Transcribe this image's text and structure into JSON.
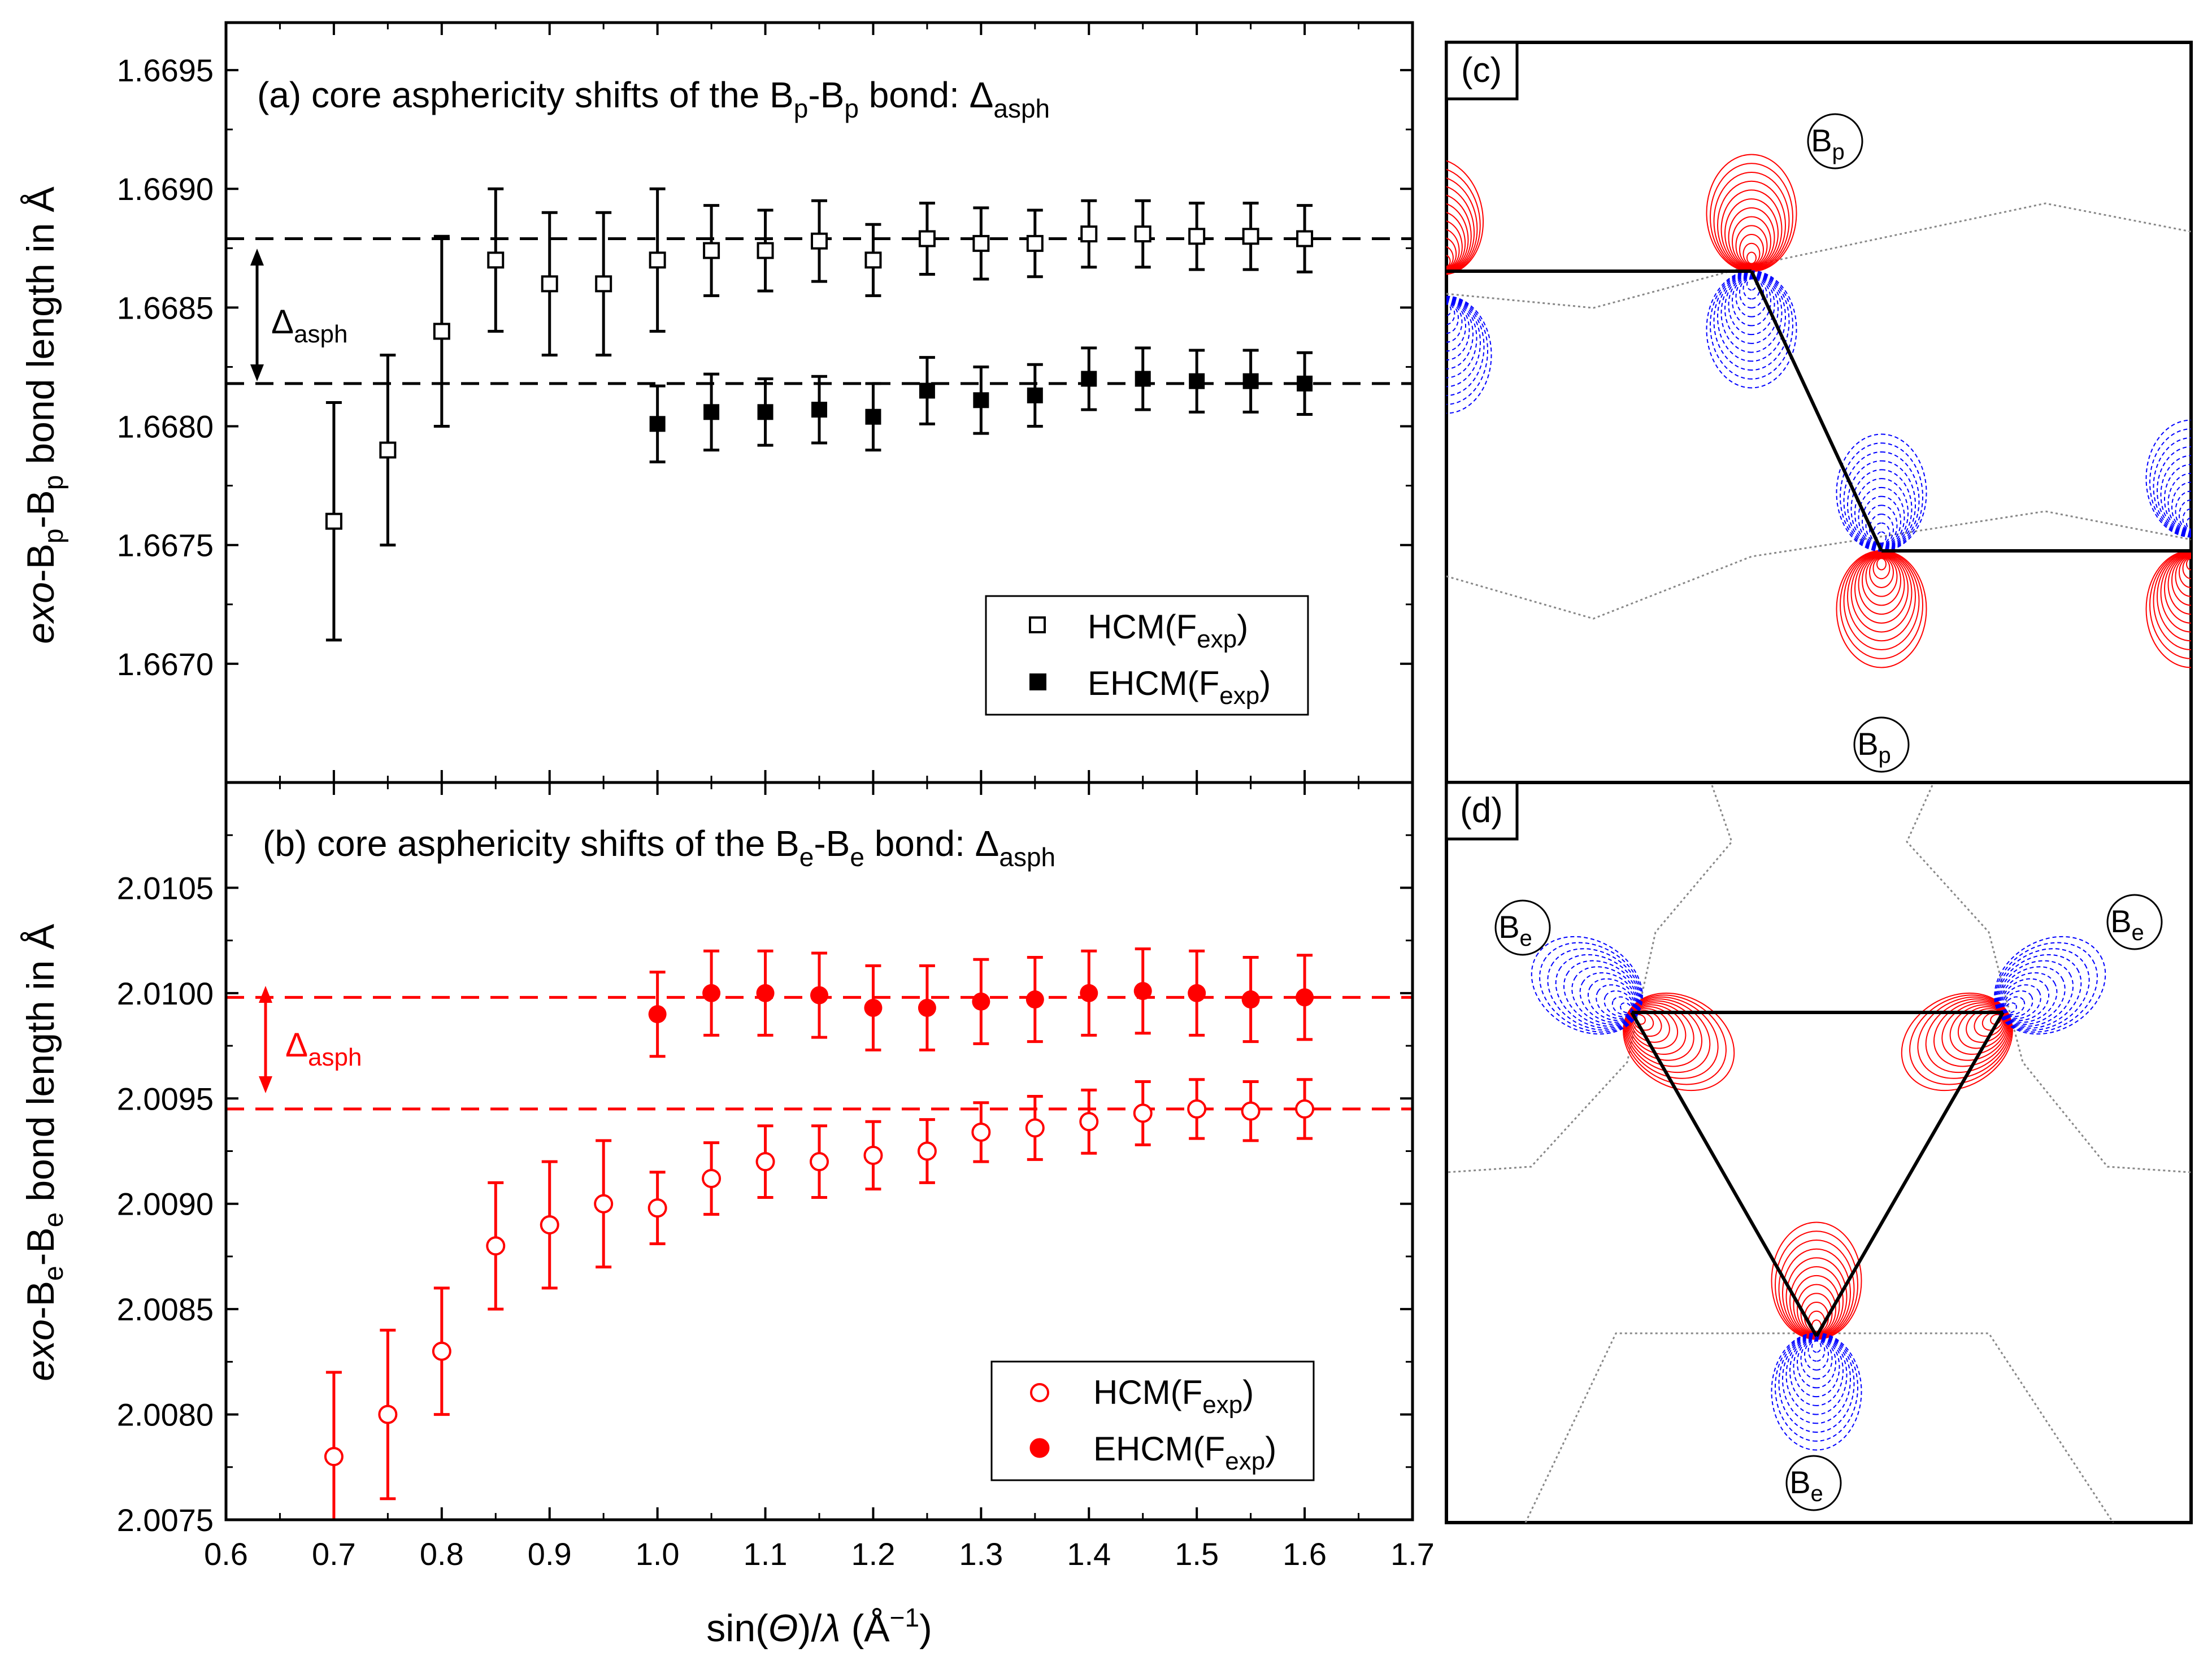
{
  "colors": {
    "black": "#000000",
    "red": "#ff0000",
    "blue": "#0000ff",
    "grey": "#888888"
  },
  "chart_data": [
    {
      "panel": "a",
      "type": "scatter",
      "title": "(a) core asphericity shifts of the B",
      "title_sub": "p",
      "title_mid": "-B",
      "title_sub2": "p",
      "title_end": " bond: Δ",
      "title_sub3": "asph",
      "ylabel_parts": {
        "a": "exo",
        "b": "-B",
        "c": "p",
        "d": "-B",
        "e": "p",
        "f": " bond length in Å"
      },
      "xlim": [
        0.6,
        1.7
      ],
      "ylim": [
        1.6665,
        1.6697
      ],
      "yticks": [
        "1.6670",
        "1.6675",
        "1.6680",
        "1.6685",
        "1.6690",
        "1.6695"
      ],
      "ytick_values": [
        1.667,
        1.6675,
        1.668,
        1.6685,
        1.669,
        1.6695
      ],
      "reference_lines": [
        1.66879,
        1.66818
      ],
      "delta_label": "Δ",
      "delta_sub": "asph",
      "series": [
        {
          "name": "HCM(F",
          "name_italic": "F",
          "name_sub": "exp",
          "name_end": ")",
          "marker": "open-square",
          "x": [
            0.7,
            0.75,
            0.8,
            0.85,
            0.9,
            0.95,
            1.0,
            1.05,
            1.1,
            1.15,
            1.2,
            1.25,
            1.3,
            1.35,
            1.4,
            1.45,
            1.5,
            1.55,
            1.6
          ],
          "y": [
            1.6676,
            1.6679,
            1.6684,
            1.6687,
            1.6686,
            1.6686,
            1.6687,
            1.66874,
            1.66874,
            1.66878,
            1.6687,
            1.66879,
            1.66877,
            1.66877,
            1.66881,
            1.66881,
            1.6688,
            1.6688,
            1.66879
          ],
          "err": [
            0.0005,
            0.0004,
            0.0004,
            0.0003,
            0.0003,
            0.0003,
            0.0003,
            0.00019,
            0.00017,
            0.00017,
            0.00015,
            0.00015,
            0.00015,
            0.00014,
            0.00014,
            0.00014,
            0.00014,
            0.00014,
            0.00014
          ]
        },
        {
          "name": "EHCM(F",
          "name_italic": "F",
          "name_sub": "exp",
          "name_end": ")",
          "marker": "filled-square",
          "x": [
            1.0,
            1.05,
            1.1,
            1.15,
            1.2,
            1.25,
            1.3,
            1.35,
            1.4,
            1.45,
            1.5,
            1.55,
            1.6
          ],
          "y": [
            1.66801,
            1.66806,
            1.66806,
            1.66807,
            1.66804,
            1.66815,
            1.66811,
            1.66813,
            1.6682,
            1.6682,
            1.66819,
            1.66819,
            1.66818
          ],
          "err": [
            0.00016,
            0.00016,
            0.00014,
            0.00014,
            0.00014,
            0.00014,
            0.00014,
            0.00013,
            0.00013,
            0.00013,
            0.00013,
            0.00013,
            0.00013
          ]
        }
      ]
    },
    {
      "panel": "b",
      "type": "scatter",
      "title": "(b) core asphericity shifts of the B",
      "title_sub": "e",
      "title_mid": "-B",
      "title_sub2": "e",
      "title_end": " bond: Δ",
      "title_sub3": "asph",
      "ylabel_parts": {
        "a": "exo",
        "b": "-B",
        "c": "e",
        "d": "-B",
        "e": "e",
        "f": " bond length in Å"
      },
      "xlabel": "sin(Θ)/λ (Å⁻¹)",
      "xlabel_parts": {
        "a": "sin(",
        "b": "Θ",
        "c": ")/",
        "d": "λ",
        "e": " (Å",
        "f": "−1",
        "g": ")"
      },
      "xlim": [
        0.6,
        1.7
      ],
      "xticks": [
        "0.6",
        "0.7",
        "0.8",
        "0.9",
        "1.0",
        "1.1",
        "1.2",
        "1.3",
        "1.4",
        "1.5",
        "1.6",
        "1.7"
      ],
      "xtick_values": [
        0.6,
        0.7,
        0.8,
        0.9,
        1.0,
        1.1,
        1.2,
        1.3,
        1.4,
        1.5,
        1.6,
        1.7
      ],
      "ylim": [
        2.0075,
        2.011
      ],
      "yticks": [
        "2.0075",
        "2.0080",
        "2.0085",
        "2.0090",
        "2.0095",
        "2.0100",
        "2.0105"
      ],
      "ytick_values": [
        2.0075,
        2.008,
        2.0085,
        2.009,
        2.0095,
        2.01,
        2.0105
      ],
      "reference_lines": [
        2.00998,
        2.00945
      ],
      "delta_label": "Δ",
      "delta_sub": "asph",
      "series": [
        {
          "name": "HCM(F",
          "name_italic": "F",
          "name_sub": "exp",
          "name_end": ")",
          "marker": "open-circle",
          "x": [
            0.7,
            0.75,
            0.8,
            0.85,
            0.9,
            0.95,
            1.0,
            1.05,
            1.1,
            1.15,
            1.2,
            1.25,
            1.3,
            1.35,
            1.4,
            1.45,
            1.5,
            1.55,
            1.6
          ],
          "y": [
            2.0078,
            2.008,
            2.0083,
            2.0088,
            2.0089,
            2.009,
            2.00898,
            2.00912,
            2.0092,
            2.0092,
            2.00923,
            2.00925,
            2.00934,
            2.00936,
            2.00939,
            2.00943,
            2.00945,
            2.00944,
            2.00945
          ],
          "err": [
            0.0004,
            0.0004,
            0.0003,
            0.0003,
            0.0003,
            0.0003,
            0.00017,
            0.00017,
            0.00017,
            0.00017,
            0.00016,
            0.00015,
            0.00014,
            0.00015,
            0.00015,
            0.00015,
            0.00014,
            0.00014,
            0.00014
          ]
        },
        {
          "name": "EHCM(F",
          "name_italic": "F",
          "name_sub": "exp",
          "name_end": ")",
          "marker": "filled-circle",
          "x": [
            1.0,
            1.05,
            1.1,
            1.15,
            1.2,
            1.25,
            1.3,
            1.35,
            1.4,
            1.45,
            1.5,
            1.55,
            1.6
          ],
          "y": [
            2.0099,
            2.01,
            2.01,
            2.00999,
            2.00993,
            2.00993,
            2.00996,
            2.00997,
            2.01,
            2.01001,
            2.01,
            2.00997,
            2.00998
          ],
          "err": [
            0.0002,
            0.0002,
            0.0002,
            0.0002,
            0.0002,
            0.0002,
            0.0002,
            0.0002,
            0.0002,
            0.0002,
            0.0002,
            0.0002,
            0.0002
          ]
        }
      ]
    }
  ],
  "panel_c": {
    "tag": "(c)",
    "atom_label": "B",
    "atom_sub": "p"
  },
  "panel_d": {
    "tag": "(d)",
    "atom_label": "B",
    "atom_sub": "e"
  }
}
